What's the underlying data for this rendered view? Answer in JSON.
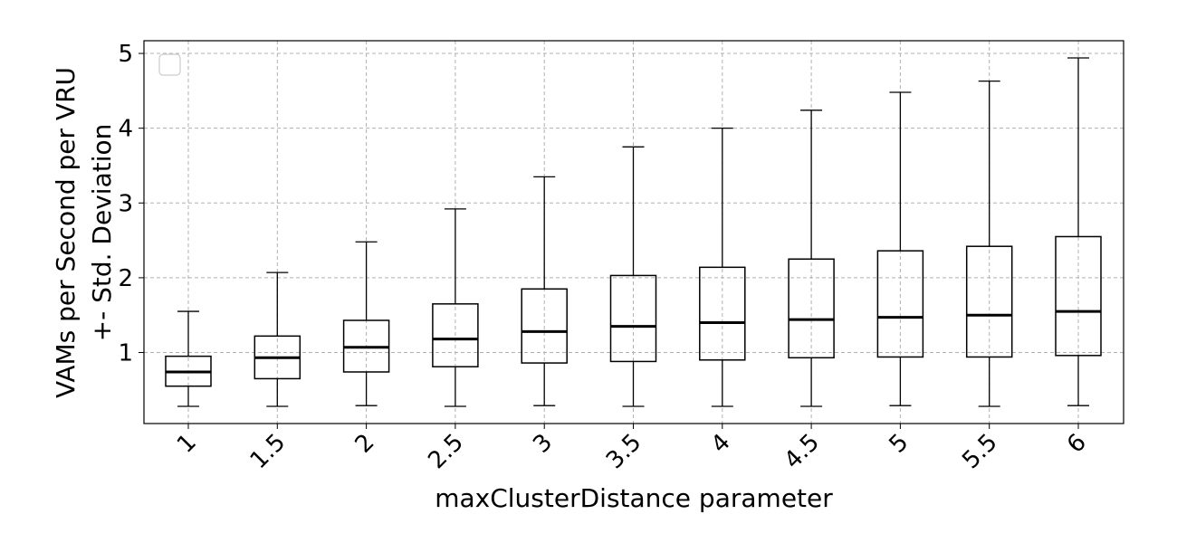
{
  "chart_data": {
    "type": "box",
    "xlabel": "maxClusterDistance parameter",
    "ylabel_lines": [
      "VAMs per Second per VRU",
      "+- Std. Deviation"
    ],
    "categories": [
      "1",
      "1.5",
      "2",
      "2.5",
      "3",
      "3.5",
      "4",
      "4.5",
      "5",
      "5.5",
      "6"
    ],
    "y_ticks": [
      1,
      2,
      3,
      4,
      5
    ],
    "ylim": [
      0.05,
      5.17
    ],
    "grid": true,
    "legend": "top-left, empty",
    "boxes": [
      {
        "category": "1",
        "whisker_low": 0.28,
        "q1": 0.55,
        "median": 0.74,
        "q3": 0.95,
        "whisker_high": 1.55
      },
      {
        "category": "1.5",
        "whisker_low": 0.28,
        "q1": 0.65,
        "median": 0.93,
        "q3": 1.22,
        "whisker_high": 2.07
      },
      {
        "category": "2",
        "whisker_low": 0.29,
        "q1": 0.74,
        "median": 1.07,
        "q3": 1.43,
        "whisker_high": 2.48
      },
      {
        "category": "2.5",
        "whisker_low": 0.28,
        "q1": 0.81,
        "median": 1.18,
        "q3": 1.65,
        "whisker_high": 2.92
      },
      {
        "category": "3",
        "whisker_low": 0.29,
        "q1": 0.86,
        "median": 1.28,
        "q3": 1.85,
        "whisker_high": 3.35
      },
      {
        "category": "3.5",
        "whisker_low": 0.28,
        "q1": 0.88,
        "median": 1.35,
        "q3": 2.03,
        "whisker_high": 3.75
      },
      {
        "category": "4",
        "whisker_low": 0.28,
        "q1": 0.9,
        "median": 1.4,
        "q3": 2.14,
        "whisker_high": 4.0
      },
      {
        "category": "4.5",
        "whisker_low": 0.28,
        "q1": 0.93,
        "median": 1.44,
        "q3": 2.25,
        "whisker_high": 4.24
      },
      {
        "category": "5",
        "whisker_low": 0.29,
        "q1": 0.94,
        "median": 1.47,
        "q3": 2.36,
        "whisker_high": 4.48
      },
      {
        "category": "5.5",
        "whisker_low": 0.28,
        "q1": 0.94,
        "median": 1.5,
        "q3": 2.42,
        "whisker_high": 4.63
      },
      {
        "category": "6",
        "whisker_low": 0.29,
        "q1": 0.96,
        "median": 1.55,
        "q3": 2.55,
        "whisker_high": 4.94
      }
    ]
  }
}
